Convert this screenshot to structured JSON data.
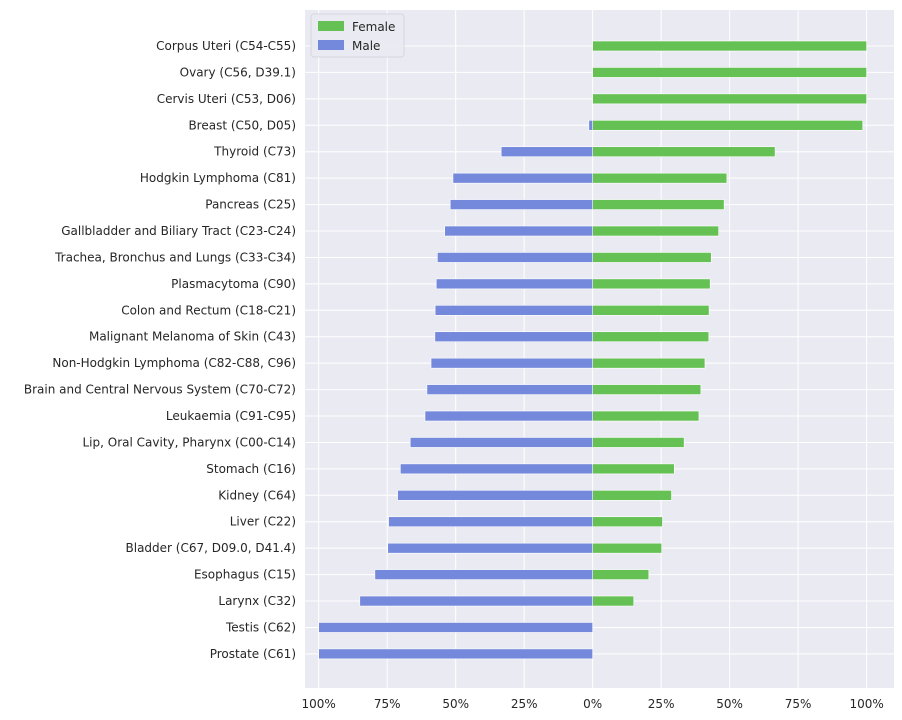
{
  "chart_data": {
    "type": "bar",
    "orientation": "horizontal",
    "stacked": "diverging",
    "categories": [
      "Corpus Uteri (C54-C55)",
      "Ovary (C56, D39.1)",
      "Cervis Uteri (C53, D06)",
      "Breast (C50, D05)",
      "Thyroid (C73)",
      "Hodgkin Lymphoma (C81)",
      "Pancreas (C25)",
      "Gallbladder and Biliary Tract (C23-C24)",
      "Trachea, Bronchus and Lungs (C33-C34)",
      "Plasmacytoma (C90)",
      "Colon and Rectum (C18-C21)",
      "Malignant Melanoma of Skin (C43)",
      "Non-Hodgkin Lymphoma (C82-C88, C96)",
      "Brain and Central Nervous System (C70-C72)",
      "Leukaemia (C91-C95)",
      "Lip, Oral Cavity, Pharynx (C00-C14)",
      "Stomach (C16)",
      "Kidney (C64)",
      "Liver (C22)",
      "Bladder (C67, D09.0, D41.4)",
      "Esophagus (C15)",
      "Larynx (C32)",
      "Testis (C62)",
      "Prostate (C61)"
    ],
    "series": [
      {
        "name": "Female",
        "color": "#66c155",
        "values": [
          100,
          100,
          100,
          98.6,
          66.6,
          49,
          48,
          46,
          43.3,
          42.9,
          42.5,
          42.4,
          41,
          39.5,
          38.8,
          33.4,
          29.8,
          28.8,
          25.5,
          25.2,
          20.5,
          15,
          0,
          0
        ]
      },
      {
        "name": "Male",
        "color": "#7589dc",
        "values": [
          0,
          0,
          0,
          1.4,
          33.4,
          51,
          52,
          54,
          56.7,
          57.1,
          57.5,
          57.6,
          59,
          60.5,
          61.2,
          66.6,
          70.2,
          71.2,
          74.5,
          74.8,
          79.5,
          85,
          100,
          100
        ]
      }
    ],
    "xticks": [
      "100%",
      "75%",
      "50%",
      "25%",
      "0%",
      "25%",
      "50%",
      "75%",
      "100%"
    ],
    "xlim": [
      -105,
      110
    ],
    "grid": true,
    "legend_position": "top-left"
  }
}
